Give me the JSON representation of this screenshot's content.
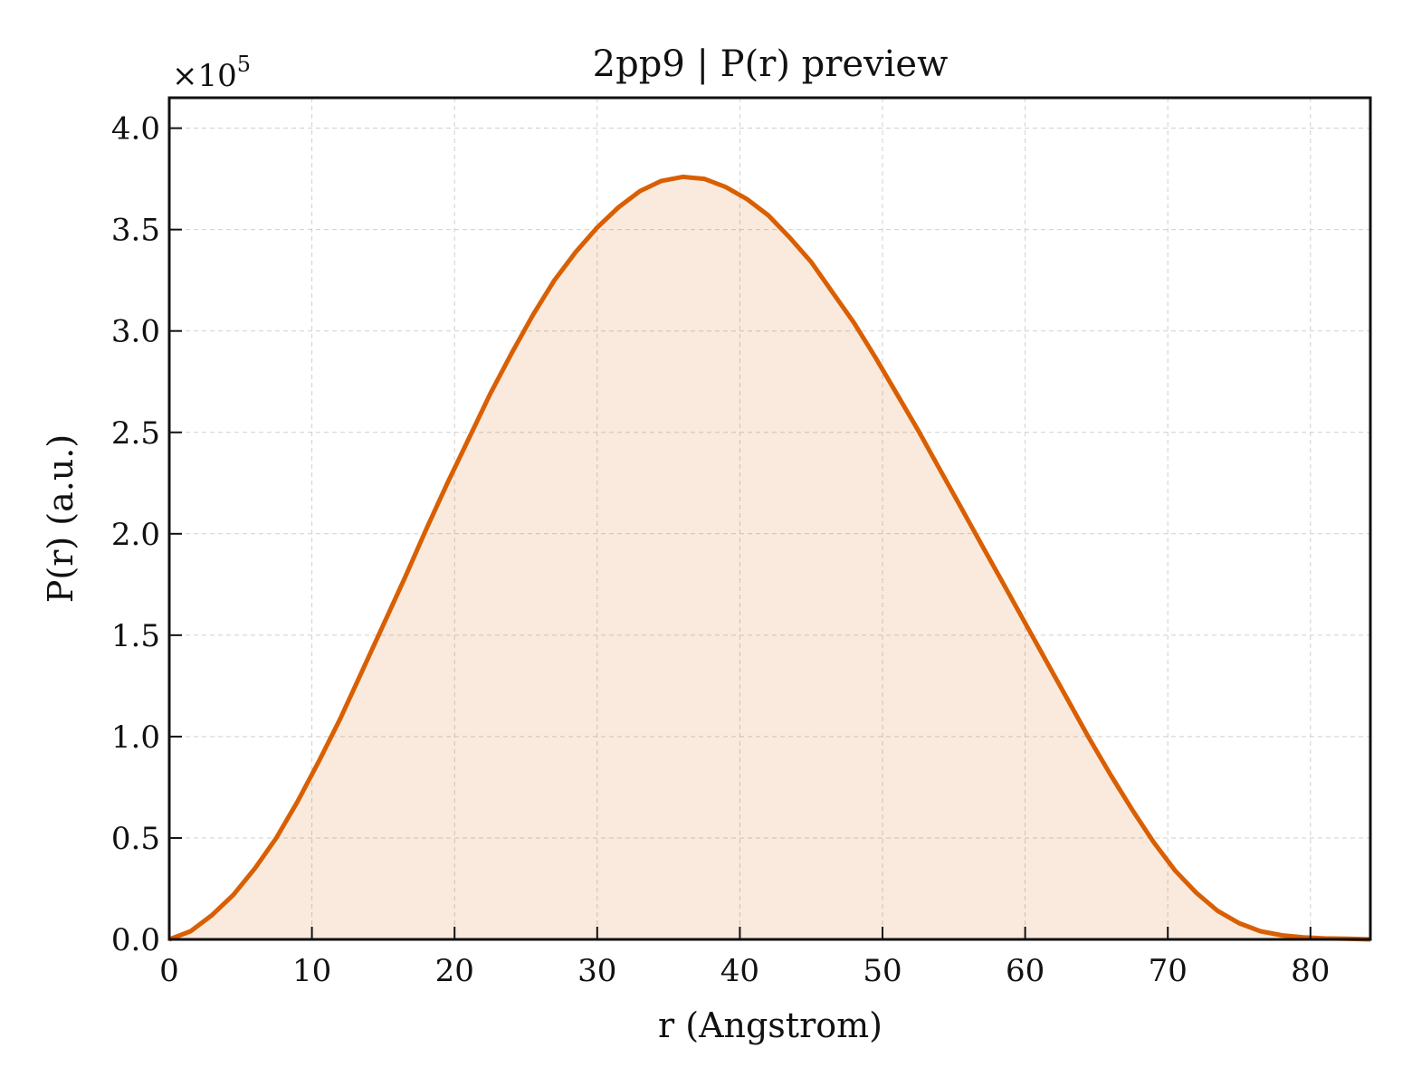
{
  "chart_data": {
    "type": "area",
    "title": "2pp9 | P(r) preview",
    "xlabel": "r (Angstrom)",
    "ylabel": "P(r) (a.u.)",
    "y_multiplier_label": "×10",
    "y_multiplier_exponent": "5",
    "xlim": [
      0,
      84.2
    ],
    "ylim": [
      0,
      4.15
    ],
    "x_ticks": [
      0,
      10,
      20,
      30,
      40,
      50,
      60,
      70,
      80
    ],
    "x_tick_labels": [
      "0",
      "10",
      "20",
      "30",
      "40",
      "50",
      "60",
      "70",
      "80"
    ],
    "y_ticks": [
      0,
      0.5,
      1,
      1.5,
      2,
      2.5,
      3,
      3.5,
      4
    ],
    "y_tick_labels": [
      "0.0",
      "0.5",
      "1.0",
      "1.5",
      "2.0",
      "2.5",
      "3.0",
      "3.5",
      "4.0"
    ],
    "grid": true,
    "colors": {
      "line": "#d95f02",
      "fill": "#d95f02"
    },
    "series": [
      {
        "x": [
          0,
          1.5,
          3,
          4.5,
          6,
          7.5,
          9,
          10.5,
          12,
          13.5,
          15,
          16.5,
          18,
          19.5,
          21,
          22.5,
          24,
          25.5,
          27,
          28.5,
          30,
          31.5,
          33,
          34.5,
          36,
          37.5,
          39,
          40.5,
          42,
          43.5,
          45,
          46.5,
          48,
          49.5,
          51,
          52.5,
          54,
          55.5,
          57,
          58.5,
          60,
          61.5,
          63,
          64.5,
          66,
          67.5,
          69,
          70.5,
          72,
          73.5,
          75,
          76.5,
          78,
          79.5,
          81,
          82.5,
          84.2
        ],
        "y": [
          0,
          0.04,
          0.12,
          0.22,
          0.35,
          0.5,
          0.68,
          0.88,
          1.09,
          1.32,
          1.55,
          1.78,
          2.02,
          2.25,
          2.47,
          2.69,
          2.89,
          3.08,
          3.25,
          3.39,
          3.51,
          3.61,
          3.69,
          3.74,
          3.76,
          3.75,
          3.71,
          3.65,
          3.57,
          3.46,
          3.34,
          3.19,
          3.04,
          2.87,
          2.69,
          2.51,
          2.32,
          2.13,
          1.94,
          1.75,
          1.56,
          1.37,
          1.18,
          0.99,
          0.81,
          0.64,
          0.48,
          0.34,
          0.23,
          0.14,
          0.08,
          0.04,
          0.02,
          0.01,
          0.005,
          0.003,
          0
        ]
      }
    ]
  }
}
